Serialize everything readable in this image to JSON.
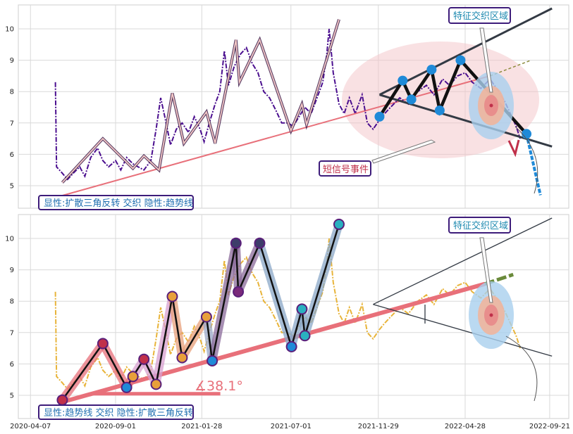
{
  "chart_data": [
    {
      "type": "line",
      "panel": "top",
      "ylim": [
        4.3,
        10.8
      ],
      "yticks": [
        5,
        6,
        7,
        8,
        9,
        10
      ],
      "grid": true,
      "labels": {
        "corner": "显性:扩散三角反转 交织 隐性:趋势线",
        "feature": "特征交织区域",
        "signal": "短信号事件"
      },
      "price": [
        [
          "2020-05-20",
          8.3
        ],
        [
          "2020-05-22",
          5.6
        ],
        [
          "2020-06-01",
          5.4
        ],
        [
          "2020-06-10",
          5.2
        ],
        [
          "2020-06-20",
          5.4
        ],
        [
          "2020-07-01",
          5.6
        ],
        [
          "2020-07-10",
          5.3
        ],
        [
          "2020-07-20",
          5.9
        ],
        [
          "2020-08-01",
          6.2
        ],
        [
          "2020-08-10",
          5.8
        ],
        [
          "2020-08-20",
          5.6
        ],
        [
          "2020-09-01",
          5.8
        ],
        [
          "2020-09-10",
          5.5
        ],
        [
          "2020-09-20",
          5.9
        ],
        [
          "2020-10-01",
          5.7
        ],
        [
          "2020-10-10",
          5.6
        ],
        [
          "2020-10-20",
          5.5
        ],
        [
          "2020-11-01",
          5.8
        ],
        [
          "2020-11-10",
          6.8
        ],
        [
          "2020-11-18",
          7.8
        ],
        [
          "2020-11-25",
          7.2
        ],
        [
          "2020-12-05",
          6.3
        ],
        [
          "2020-12-15",
          6.8
        ],
        [
          "2020-12-25",
          7.0
        ],
        [
          "2021-01-05",
          6.7
        ],
        [
          "2021-01-15",
          7.2
        ],
        [
          "2021-01-25",
          6.8
        ],
        [
          "2021-02-01",
          6.4
        ],
        [
          "2021-02-10",
          7.0
        ],
        [
          "2021-02-20",
          7.6
        ],
        [
          "2021-02-28",
          8.0
        ],
        [
          "2021-03-08",
          9.3
        ],
        [
          "2021-03-15",
          8.2
        ],
        [
          "2021-03-25",
          8.8
        ],
        [
          "2021-04-05",
          9.2
        ],
        [
          "2021-04-15",
          9.4
        ],
        [
          "2021-04-25",
          8.9
        ],
        [
          "2021-05-05",
          8.6
        ],
        [
          "2021-05-15",
          8.0
        ],
        [
          "2021-05-25",
          7.8
        ],
        [
          "2021-06-05",
          7.4
        ],
        [
          "2021-06-15",
          7.0
        ],
        [
          "2021-06-25",
          7.0
        ],
        [
          "2021-07-05",
          6.9
        ],
        [
          "2021-07-15",
          7.2
        ],
        [
          "2021-07-25",
          7.5
        ],
        [
          "2021-08-05",
          7.3
        ],
        [
          "2021-08-15",
          7.8
        ],
        [
          "2021-08-25",
          8.3
        ],
        [
          "2021-09-01",
          9.2
        ],
        [
          "2021-09-05",
          10.0
        ],
        [
          "2021-09-12",
          8.6
        ],
        [
          "2021-09-22",
          7.6
        ],
        [
          "2021-10-01",
          7.3
        ],
        [
          "2021-10-10",
          7.8
        ],
        [
          "2021-10-20",
          7.3
        ],
        [
          "2021-11-01",
          7.9
        ],
        [
          "2021-11-10",
          7.0
        ],
        [
          "2021-11-20",
          6.8
        ],
        [
          "2021-12-01",
          7.1
        ],
        [
          "2021-12-10",
          7.3
        ],
        [
          "2021-12-20",
          7.5
        ],
        [
          "2022-01-05",
          7.8
        ],
        [
          "2022-01-20",
          7.6
        ],
        [
          "2022-02-05",
          8.0
        ],
        [
          "2022-02-20",
          8.2
        ],
        [
          "2022-03-05",
          7.9
        ],
        [
          "2022-03-20",
          8.4
        ],
        [
          "2022-04-01",
          8.2
        ],
        [
          "2022-04-15",
          8.5
        ],
        [
          "2022-04-28",
          8.6
        ],
        [
          "2022-05-10",
          8.3
        ],
        [
          "2022-05-25",
          8.1
        ],
        [
          "2022-06-10",
          8.4
        ],
        [
          "2022-06-25",
          8.0
        ],
        [
          "2022-07-05",
          7.7
        ],
        [
          "2022-07-15",
          7.3
        ],
        [
          "2022-07-25",
          6.9
        ],
        [
          "2022-08-01",
          6.5
        ]
      ],
      "zigzag": [
        [
          "2020-06-01",
          5.1
        ],
        [
          "2020-08-10",
          6.5
        ],
        [
          "2020-10-01",
          5.55
        ],
        [
          "2020-10-20",
          5.95
        ],
        [
          "2020-11-15",
          5.5
        ],
        [
          "2020-12-08",
          7.95
        ],
        [
          "2020-12-28",
          6.35
        ],
        [
          "2021-02-05",
          7.35
        ],
        [
          "2021-02-20",
          6.35
        ],
        [
          "2021-03-28",
          9.65
        ],
        [
          "2021-04-03",
          8.3
        ],
        [
          "2021-05-08",
          9.65
        ],
        [
          "2021-07-01",
          6.75
        ],
        [
          "2021-07-20",
          7.6
        ],
        [
          "2021-07-28",
          6.95
        ],
        [
          "2021-09-22",
          10.3
        ]
      ],
      "triangle_points": [
        [
          "2021-12-01",
          7.2
        ],
        [
          "2022-01-10",
          8.35
        ],
        [
          "2022-01-25",
          7.75
        ],
        [
          "2022-03-01",
          8.7
        ],
        [
          "2022-03-15",
          7.4
        ],
        [
          "2022-04-20",
          9.0
        ],
        [
          "2022-08-12",
          6.65
        ]
      ],
      "trendline": [
        [
          "2020-05-25",
          4.65
        ],
        [
          "2022-06-10",
          8.5
        ]
      ],
      "trend_extension": [
        [
          "2022-06-10",
          8.5
        ],
        [
          "2022-08-20",
          9.0
        ]
      ],
      "triangle_upper": [
        [
          "2021-12-01",
          7.9
        ],
        [
          "2022-09-25",
          10.65
        ]
      ],
      "triangle_lower": [
        [
          "2021-12-01",
          7.9
        ],
        [
          "2022-09-25",
          6.25
        ]
      ],
      "projection": [
        [
          "2022-08-12",
          6.65
        ],
        [
          "2022-09-05",
          4.7
        ]
      ]
    },
    {
      "type": "line",
      "panel": "bottom",
      "ylim": [
        4.3,
        10.8
      ],
      "yticks": [
        5,
        6,
        7,
        8,
        9,
        10
      ],
      "grid": true,
      "xticks": [
        "2020-04-07",
        "2020-09-01",
        "2021-01-28",
        "2021-07-01",
        "2021-11-29",
        "2022-04-28",
        "2022-09-21"
      ],
      "labels": {
        "corner": "显性:趋势线 交织 隐性:扩散三角反转",
        "feature": "特征交织区域",
        "angle": "∡38.1°"
      },
      "price": [
        [
          "2020-05-20",
          8.3
        ],
        [
          "2020-05-22",
          5.6
        ],
        [
          "2020-06-01",
          5.4
        ],
        [
          "2020-06-10",
          5.2
        ],
        [
          "2020-06-20",
          5.4
        ],
        [
          "2020-07-01",
          5.6
        ],
        [
          "2020-07-10",
          5.3
        ],
        [
          "2020-07-20",
          5.9
        ],
        [
          "2020-08-01",
          6.2
        ],
        [
          "2020-08-10",
          5.8
        ],
        [
          "2020-08-20",
          5.6
        ],
        [
          "2020-09-01",
          5.8
        ],
        [
          "2020-09-10",
          5.5
        ],
        [
          "2020-09-20",
          5.9
        ],
        [
          "2020-10-01",
          5.7
        ],
        [
          "2020-10-10",
          5.6
        ],
        [
          "2020-10-20",
          5.5
        ],
        [
          "2020-11-01",
          5.8
        ],
        [
          "2020-11-10",
          6.8
        ],
        [
          "2020-11-18",
          7.8
        ],
        [
          "2020-11-25",
          7.2
        ],
        [
          "2020-12-05",
          6.3
        ],
        [
          "2020-12-15",
          6.8
        ],
        [
          "2020-12-25",
          7.0
        ],
        [
          "2021-01-05",
          6.7
        ],
        [
          "2021-01-15",
          7.2
        ],
        [
          "2021-01-25",
          6.8
        ],
        [
          "2021-02-01",
          6.4
        ],
        [
          "2021-02-10",
          7.0
        ],
        [
          "2021-02-20",
          7.6
        ],
        [
          "2021-02-28",
          8.0
        ],
        [
          "2021-03-08",
          9.3
        ],
        [
          "2021-03-15",
          8.2
        ],
        [
          "2021-03-25",
          8.8
        ],
        [
          "2021-04-05",
          9.2
        ],
        [
          "2021-04-15",
          9.4
        ],
        [
          "2021-04-25",
          8.9
        ],
        [
          "2021-05-05",
          8.6
        ],
        [
          "2021-05-15",
          8.0
        ],
        [
          "2021-05-25",
          7.8
        ],
        [
          "2021-06-05",
          7.4
        ],
        [
          "2021-06-15",
          7.0
        ],
        [
          "2021-06-25",
          7.0
        ],
        [
          "2021-07-05",
          6.9
        ],
        [
          "2021-07-15",
          7.2
        ],
        [
          "2021-07-25",
          7.5
        ],
        [
          "2021-08-05",
          7.3
        ],
        [
          "2021-08-15",
          7.8
        ],
        [
          "2021-08-25",
          8.3
        ],
        [
          "2021-09-01",
          9.2
        ],
        [
          "2021-09-05",
          10.0
        ],
        [
          "2021-09-12",
          8.6
        ],
        [
          "2021-09-22",
          7.6
        ],
        [
          "2021-10-01",
          7.3
        ],
        [
          "2021-10-10",
          7.8
        ],
        [
          "2021-10-20",
          7.3
        ],
        [
          "2021-11-01",
          7.9
        ],
        [
          "2021-11-10",
          7.0
        ],
        [
          "2021-11-20",
          6.8
        ],
        [
          "2021-12-01",
          7.1
        ],
        [
          "2021-12-10",
          7.3
        ],
        [
          "2021-12-20",
          7.5
        ],
        [
          "2022-01-05",
          7.8
        ],
        [
          "2022-01-20",
          7.6
        ],
        [
          "2022-02-05",
          8.0
        ],
        [
          "2022-02-20",
          8.2
        ],
        [
          "2022-03-05",
          7.9
        ],
        [
          "2022-03-20",
          8.4
        ],
        [
          "2022-04-01",
          8.2
        ],
        [
          "2022-04-15",
          8.5
        ],
        [
          "2022-04-28",
          8.6
        ],
        [
          "2022-05-10",
          8.3
        ],
        [
          "2022-05-25",
          8.1
        ],
        [
          "2022-06-10",
          8.4
        ],
        [
          "2022-06-25",
          8.0
        ],
        [
          "2022-07-05",
          7.7
        ],
        [
          "2022-07-15",
          7.3
        ],
        [
          "2022-07-25",
          6.9
        ],
        [
          "2022-08-01",
          6.5
        ]
      ],
      "zigzag": [
        [
          "2020-06-01",
          4.85
        ],
        [
          "2020-08-10",
          6.65
        ],
        [
          "2020-09-20",
          5.25
        ],
        [
          "2020-10-01",
          5.6
        ],
        [
          "2020-10-20",
          6.15
        ],
        [
          "2020-11-10",
          5.35
        ],
        [
          "2020-12-08",
          8.15
        ],
        [
          "2020-12-25",
          6.2
        ],
        [
          "2021-02-05",
          7.5
        ],
        [
          "2021-02-15",
          6.1
        ],
        [
          "2021-03-28",
          9.85
        ],
        [
          "2021-04-01",
          8.3
        ],
        [
          "2021-05-08",
          9.85
        ],
        [
          "2021-07-02",
          6.55
        ],
        [
          "2021-07-20",
          7.75
        ],
        [
          "2021-07-25",
          6.9
        ],
        [
          "2021-09-22",
          10.45
        ]
      ],
      "trendline": [
        [
          "2020-05-25",
          4.75
        ],
        [
          "2022-06-01",
          8.55
        ]
      ],
      "trend_extension": [
        [
          "2022-06-01",
          8.55
        ],
        [
          "2022-07-20",
          8.85
        ]
      ],
      "flat_line": [
        [
          "2020-07-20",
          5.05
        ],
        [
          "2021-03-01",
          5.05
        ]
      ],
      "triangle_upper": [
        [
          "2021-11-20",
          7.9
        ],
        [
          "2022-09-25",
          10.65
        ]
      ],
      "triangle_lower": [
        [
          "2021-11-20",
          7.9
        ],
        [
          "2022-09-25",
          6.25
        ]
      ]
    }
  ]
}
